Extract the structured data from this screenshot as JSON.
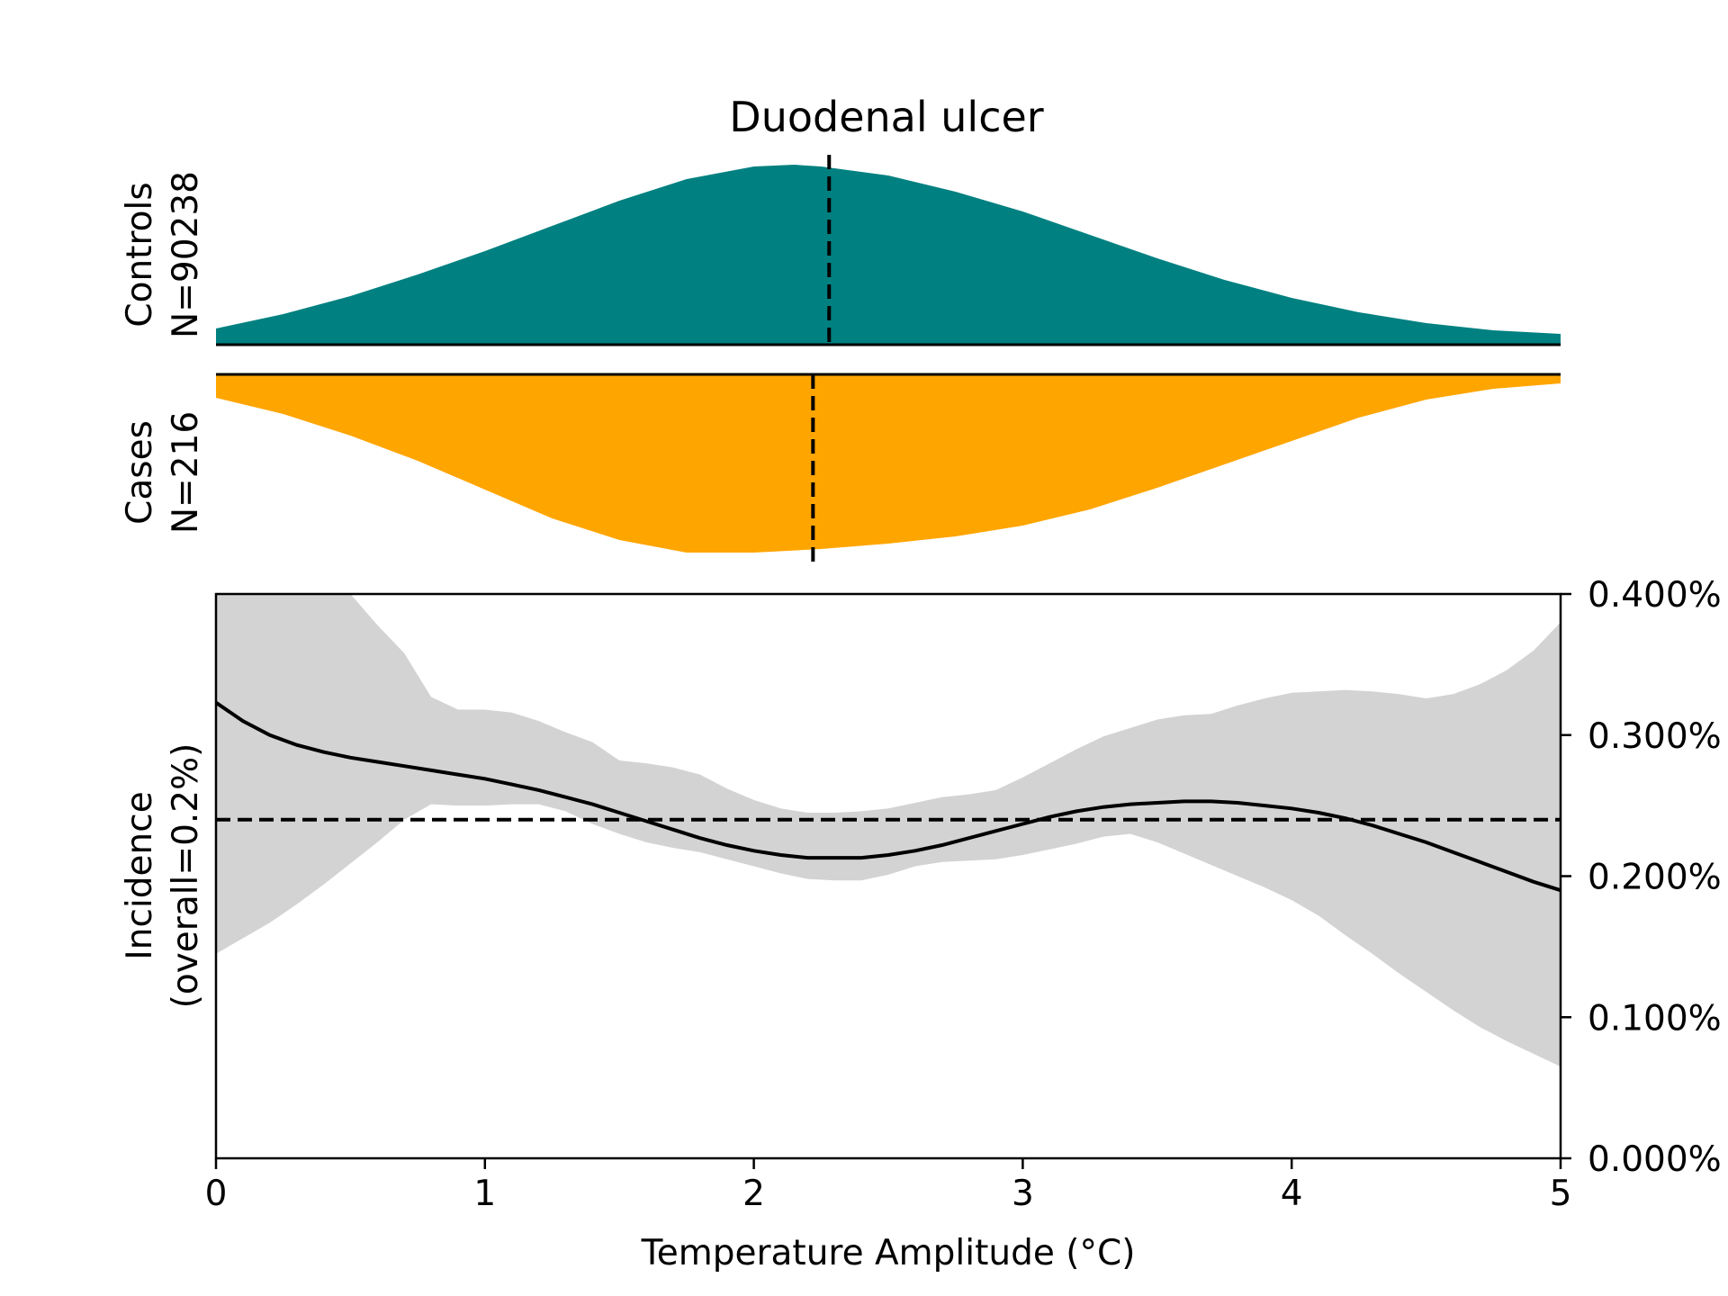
{
  "chart_data": {
    "type": "area",
    "title": "Duodenal ulcer",
    "xlabel": "Temperature Amplitude (°C)",
    "xlim": [
      0,
      5
    ],
    "x_ticks": [
      "0",
      "1",
      "2",
      "3",
      "4",
      "5"
    ],
    "controls": {
      "label_line1": "Controls",
      "label_line2": "N=90238",
      "color": "#008080",
      "median": 2.28,
      "x": [
        0,
        0.25,
        0.5,
        0.75,
        1,
        1.25,
        1.5,
        1.75,
        2,
        2.15,
        2.25,
        2.5,
        2.75,
        3,
        3.25,
        3.5,
        3.75,
        4,
        4.25,
        4.5,
        4.75,
        5
      ],
      "density": [
        0.09,
        0.17,
        0.27,
        0.39,
        0.52,
        0.66,
        0.8,
        0.92,
        0.99,
        1.0,
        0.99,
        0.94,
        0.85,
        0.74,
        0.61,
        0.48,
        0.36,
        0.26,
        0.18,
        0.12,
        0.08,
        0.06
      ]
    },
    "cases": {
      "label_line1": "Cases",
      "label_line2": "N=216",
      "color": "#FFA500",
      "median": 2.22,
      "x": [
        0,
        0.25,
        0.5,
        0.75,
        1,
        1.25,
        1.5,
        1.75,
        2,
        2.25,
        2.5,
        2.75,
        3,
        3.25,
        3.5,
        3.75,
        4,
        4.25,
        4.5,
        4.75,
        5
      ],
      "density": [
        0.13,
        0.22,
        0.34,
        0.48,
        0.64,
        0.8,
        0.92,
        0.99,
        0.99,
        0.97,
        0.94,
        0.9,
        0.84,
        0.75,
        0.63,
        0.5,
        0.37,
        0.24,
        0.14,
        0.08,
        0.05
      ]
    },
    "incidence": {
      "ylabel_line1": "Incidence",
      "ylabel_line2": "(overall=0.2%)",
      "ylim": [
        0,
        0.004
      ],
      "y_ticks": [
        "0.000%",
        "0.100%",
        "0.200%",
        "0.300%",
        "0.400%"
      ],
      "overall": 0.0024,
      "x": [
        0,
        0.1,
        0.2,
        0.3,
        0.4,
        0.5,
        0.6,
        0.7,
        0.8,
        0.9,
        1.0,
        1.1,
        1.2,
        1.3,
        1.4,
        1.5,
        1.6,
        1.7,
        1.8,
        1.9,
        2.0,
        2.1,
        2.2,
        2.3,
        2.4,
        2.5,
        2.6,
        2.7,
        2.8,
        2.9,
        3.0,
        3.1,
        3.2,
        3.3,
        3.4,
        3.5,
        3.6,
        3.7,
        3.8,
        3.9,
        4.0,
        4.1,
        4.2,
        4.3,
        4.4,
        4.5,
        4.6,
        4.7,
        4.8,
        4.9,
        5.0
      ],
      "estimate": [
        0.00323,
        0.0031,
        0.003,
        0.00293,
        0.00288,
        0.00284,
        0.00281,
        0.00278,
        0.00275,
        0.00272,
        0.00269,
        0.00265,
        0.00261,
        0.00256,
        0.00251,
        0.00245,
        0.00239,
        0.00233,
        0.00227,
        0.00222,
        0.00218,
        0.00215,
        0.00213,
        0.00213,
        0.00213,
        0.00215,
        0.00218,
        0.00222,
        0.00227,
        0.00232,
        0.00237,
        0.00242,
        0.00246,
        0.00249,
        0.00251,
        0.00252,
        0.00253,
        0.00253,
        0.00252,
        0.0025,
        0.00248,
        0.00245,
        0.00241,
        0.00236,
        0.0023,
        0.00224,
        0.00217,
        0.0021,
        0.00203,
        0.00196,
        0.0019
      ],
      "ci_upper": [
        0.0043,
        0.0043,
        0.0043,
        0.0043,
        0.0043,
        0.004,
        0.00378,
        0.00358,
        0.00327,
        0.00318,
        0.00318,
        0.00316,
        0.0031,
        0.00302,
        0.00295,
        0.00282,
        0.0028,
        0.00277,
        0.00272,
        0.00262,
        0.00254,
        0.00248,
        0.00245,
        0.00245,
        0.00246,
        0.00248,
        0.00252,
        0.00256,
        0.00258,
        0.00261,
        0.0027,
        0.0028,
        0.0029,
        0.00299,
        0.00305,
        0.00311,
        0.00314,
        0.00315,
        0.00321,
        0.00326,
        0.0033,
        0.00331,
        0.00332,
        0.00331,
        0.00329,
        0.00326,
        0.00329,
        0.00336,
        0.00346,
        0.0036,
        0.0038
      ],
      "ci_lower": [
        0.00145,
        0.00156,
        0.00167,
        0.0018,
        0.00194,
        0.00209,
        0.00224,
        0.0024,
        0.00251,
        0.0025,
        0.0025,
        0.00251,
        0.00251,
        0.00246,
        0.00237,
        0.0023,
        0.00224,
        0.0022,
        0.00217,
        0.00212,
        0.00207,
        0.00202,
        0.00198,
        0.00197,
        0.00197,
        0.00201,
        0.00207,
        0.0021,
        0.00211,
        0.00212,
        0.00215,
        0.00219,
        0.00223,
        0.00228,
        0.0023,
        0.00224,
        0.00216,
        0.00208,
        0.002,
        0.00192,
        0.00183,
        0.00172,
        0.00158,
        0.00145,
        0.00131,
        0.00118,
        0.00105,
        0.00093,
        0.00083,
        0.00074,
        0.00065
      ],
      "line_color": "#000000",
      "band_color": "#d3d3d3"
    }
  }
}
